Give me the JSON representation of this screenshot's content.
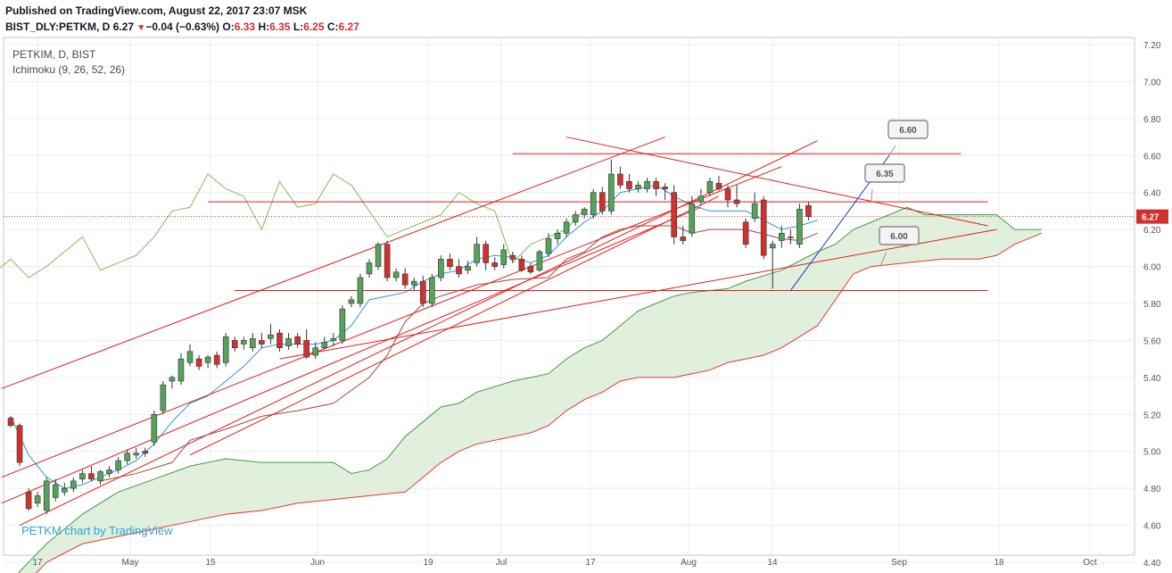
{
  "header": {
    "published": "Published on TradingView.com, August 22, 2017 23:07 MSK",
    "symbol": "BIST_DLY:PETKM, D",
    "last": "6.27",
    "change_arrow": "▼",
    "change": "−0.04 (−0.63%)",
    "o_label": "O:",
    "o": "6.33",
    "h_label": "H:",
    "h": "6.35",
    "l_label": "L:",
    "l": "6.25",
    "c_label": "C:",
    "c": "6.27"
  },
  "legend": {
    "line1": "PETKIM, D, BIST",
    "line2": "Ichimoku (9, 26, 52, 26)"
  },
  "watermark": "PETKM chart by TradingView",
  "colors": {
    "up": "#53a35a",
    "down": "#d0312d",
    "tenkan": "#2f96d8",
    "kijun": "#a54545",
    "span_a": "#3e9c3e",
    "span_b": "#e8372d",
    "chikou": "#7fbf55",
    "cloud": "#d8ecd5",
    "trend": "#e51a1a",
    "blue_line": "#1c34d6"
  },
  "chart_data": {
    "type": "candlestick",
    "y_range": [
      4.4,
      7.2
    ],
    "y_ticks": [
      "7.20",
      "7.00",
      "6.80",
      "6.60",
      "6.40",
      "6.20",
      "6.00",
      "5.80",
      "5.60",
      "5.40",
      "5.20",
      "5.00",
      "4.80",
      "4.60",
      "4.40"
    ],
    "x_ticks": [
      "17",
      "May",
      "15",
      "Jun",
      "19",
      "Jul",
      "17",
      "Aug",
      "14",
      "Sep",
      "18",
      "Oct"
    ],
    "last_price_label": "6.27",
    "last_price": 6.27,
    "candles": [
      [
        5.18,
        5.19,
        5.13,
        5.14
      ],
      [
        5.14,
        5.15,
        4.92,
        4.94
      ],
      [
        4.78,
        4.8,
        4.68,
        4.69
      ],
      [
        4.72,
        4.78,
        4.7,
        4.76
      ],
      [
        4.68,
        4.86,
        4.66,
        4.84
      ],
      [
        4.75,
        4.85,
        4.73,
        4.82
      ],
      [
        4.78,
        4.83,
        4.76,
        4.8
      ],
      [
        4.8,
        4.86,
        4.78,
        4.84
      ],
      [
        4.85,
        4.9,
        4.83,
        4.88
      ],
      [
        4.88,
        4.92,
        4.84,
        4.85
      ],
      [
        4.84,
        4.9,
        4.82,
        4.89
      ],
      [
        4.88,
        4.92,
        4.86,
        4.9
      ],
      [
        4.9,
        4.97,
        4.88,
        4.95
      ],
      [
        4.95,
        5.01,
        4.93,
        4.99
      ],
      [
        4.98,
        5.02,
        4.96,
        4.99
      ],
      [
        5.0,
        5.02,
        4.97,
        4.99
      ],
      [
        5.05,
        5.22,
        5.03,
        5.2
      ],
      [
        5.22,
        5.38,
        5.2,
        5.36
      ],
      [
        5.38,
        5.41,
        5.34,
        5.4
      ],
      [
        5.38,
        5.53,
        5.36,
        5.5
      ],
      [
        5.48,
        5.58,
        5.46,
        5.54
      ],
      [
        5.5,
        5.52,
        5.44,
        5.46
      ],
      [
        5.48,
        5.52,
        5.45,
        5.51
      ],
      [
        5.52,
        5.54,
        5.45,
        5.47
      ],
      [
        5.48,
        5.64,
        5.46,
        5.62
      ],
      [
        5.6,
        5.62,
        5.54,
        5.56
      ],
      [
        5.58,
        5.62,
        5.55,
        5.6
      ],
      [
        5.56,
        5.64,
        5.54,
        5.61
      ],
      [
        5.6,
        5.64,
        5.56,
        5.58
      ],
      [
        5.61,
        5.69,
        5.58,
        5.63
      ],
      [
        5.64,
        5.66,
        5.54,
        5.56
      ],
      [
        5.57,
        5.64,
        5.55,
        5.61
      ],
      [
        5.62,
        5.64,
        5.56,
        5.58
      ],
      [
        5.6,
        5.66,
        5.5,
        5.51
      ],
      [
        5.52,
        5.59,
        5.5,
        5.56
      ],
      [
        5.56,
        5.62,
        5.55,
        5.59
      ],
      [
        5.6,
        5.64,
        5.57,
        5.61
      ],
      [
        5.6,
        5.79,
        5.58,
        5.77
      ],
      [
        5.8,
        5.84,
        5.78,
        5.82
      ],
      [
        5.8,
        5.96,
        5.78,
        5.94
      ],
      [
        5.96,
        6.04,
        5.94,
        6.02
      ],
      [
        6.0,
        6.13,
        5.98,
        6.12
      ],
      [
        6.12,
        6.14,
        5.92,
        5.94
      ],
      [
        5.94,
        5.99,
        5.92,
        5.97
      ],
      [
        5.96,
        5.99,
        5.88,
        5.9
      ],
      [
        5.9,
        5.94,
        5.87,
        5.92
      ],
      [
        5.92,
        5.95,
        5.78,
        5.8
      ],
      [
        5.8,
        5.96,
        5.78,
        5.94
      ],
      [
        5.94,
        6.06,
        5.92,
        6.04
      ],
      [
        6.04,
        6.07,
        5.98,
        6.0
      ],
      [
        6.0,
        6.04,
        5.94,
        5.96
      ],
      [
        5.98,
        6.03,
        5.96,
        6.0
      ],
      [
        6.02,
        6.16,
        6.0,
        6.12
      ],
      [
        6.12,
        6.14,
        5.98,
        6.02
      ],
      [
        6.02,
        6.05,
        5.98,
        6.0
      ],
      [
        6.01,
        6.12,
        5.99,
        6.09
      ],
      [
        6.06,
        6.08,
        6.02,
        6.04
      ],
      [
        6.04,
        6.06,
        5.97,
        5.98
      ],
      [
        6.0,
        6.02,
        5.96,
        5.97
      ],
      [
        5.98,
        6.09,
        5.97,
        6.08
      ],
      [
        6.07,
        6.18,
        6.05,
        6.15
      ],
      [
        6.15,
        6.2,
        6.12,
        6.18
      ],
      [
        6.18,
        6.26,
        6.16,
        6.24
      ],
      [
        6.24,
        6.3,
        6.22,
        6.28
      ],
      [
        6.28,
        6.32,
        6.26,
        6.31
      ],
      [
        6.28,
        6.42,
        6.26,
        6.4
      ],
      [
        6.4,
        6.43,
        6.28,
        6.3
      ],
      [
        6.3,
        6.58,
        6.28,
        6.5
      ],
      [
        6.5,
        6.54,
        6.42,
        6.44
      ],
      [
        6.46,
        6.5,
        6.4,
        6.42
      ],
      [
        6.42,
        6.46,
        6.4,
        6.44
      ],
      [
        6.42,
        6.48,
        6.4,
        6.46
      ],
      [
        6.46,
        6.48,
        6.38,
        6.42
      ],
      [
        6.43,
        6.45,
        6.36,
        6.42
      ],
      [
        6.4,
        6.44,
        6.12,
        6.16
      ],
      [
        6.16,
        6.22,
        6.12,
        6.14
      ],
      [
        6.18,
        6.38,
        6.16,
        6.34
      ],
      [
        6.35,
        6.42,
        6.33,
        6.38
      ],
      [
        6.4,
        6.48,
        6.38,
        6.46
      ],
      [
        6.45,
        6.49,
        6.41,
        6.42
      ],
      [
        6.42,
        6.44,
        6.32,
        6.36
      ],
      [
        6.36,
        6.44,
        6.32,
        6.34
      ],
      [
        6.24,
        6.26,
        6.1,
        6.12
      ],
      [
        6.26,
        6.4,
        6.24,
        6.34
      ],
      [
        6.36,
        6.38,
        6.04,
        6.06
      ],
      [
        6.1,
        6.14,
        5.88,
        6.12
      ],
      [
        6.14,
        6.22,
        6.1,
        6.18
      ],
      [
        6.16,
        6.2,
        6.12,
        6.16
      ],
      [
        6.12,
        6.34,
        6.1,
        6.31
      ],
      [
        6.33,
        6.35,
        6.25,
        6.27
      ]
    ],
    "horizontal_lines": [
      6.61,
      6.35,
      5.87
    ],
    "callouts": [
      {
        "label": "6.60",
        "value": 6.6
      },
      {
        "label": "6.35",
        "value": 6.35
      },
      {
        "label": "6.00",
        "value": 6.0
      }
    ],
    "ichimoku": {
      "tenkan": [
        [
          0,
          5.19
        ],
        [
          2,
          4.98
        ],
        [
          4,
          4.86
        ],
        [
          6,
          4.8
        ],
        [
          8,
          4.82
        ],
        [
          10,
          4.86
        ],
        [
          12,
          4.9
        ],
        [
          14,
          4.95
        ],
        [
          16,
          5.04
        ],
        [
          18,
          5.16
        ],
        [
          20,
          5.26
        ],
        [
          22,
          5.3
        ],
        [
          24,
          5.38
        ],
        [
          26,
          5.46
        ],
        [
          28,
          5.56
        ],
        [
          30,
          5.58
        ],
        [
          32,
          5.58
        ],
        [
          34,
          5.58
        ],
        [
          36,
          5.6
        ],
        [
          38,
          5.68
        ],
        [
          40,
          5.82
        ],
        [
          42,
          5.84
        ],
        [
          44,
          5.86
        ],
        [
          46,
          5.92
        ],
        [
          48,
          5.96
        ],
        [
          50,
          5.98
        ],
        [
          52,
          6.04
        ],
        [
          54,
          6.06
        ],
        [
          56,
          6.05
        ],
        [
          58,
          6.02
        ],
        [
          60,
          6.06
        ],
        [
          62,
          6.16
        ],
        [
          64,
          6.24
        ],
        [
          66,
          6.3
        ],
        [
          68,
          6.4
        ],
        [
          70,
          6.42
        ],
        [
          72,
          6.44
        ],
        [
          74,
          6.38
        ],
        [
          76,
          6.33
        ],
        [
          78,
          6.3
        ],
        [
          80,
          6.3
        ],
        [
          82,
          6.3
        ],
        [
          84,
          6.25
        ],
        [
          86,
          6.2
        ],
        [
          88,
          6.22
        ],
        [
          90,
          6.25
        ]
      ],
      "kijun": [
        [
          10,
          4.84
        ],
        [
          14,
          4.88
        ],
        [
          18,
          4.94
        ],
        [
          20,
          5.06
        ],
        [
          24,
          5.12
        ],
        [
          28,
          5.19
        ],
        [
          32,
          5.22
        ],
        [
          36,
          5.26
        ],
        [
          40,
          5.4
        ],
        [
          42,
          5.52
        ],
        [
          44,
          5.7
        ],
        [
          46,
          5.8
        ],
        [
          48,
          5.84
        ],
        [
          52,
          5.9
        ],
        [
          56,
          5.93
        ],
        [
          60,
          5.94
        ],
        [
          62,
          6.04
        ],
        [
          64,
          6.08
        ],
        [
          66,
          6.16
        ],
        [
          68,
          6.2
        ],
        [
          70,
          6.22
        ],
        [
          74,
          6.22
        ],
        [
          76,
          6.18
        ],
        [
          78,
          6.2
        ],
        [
          80,
          6.2
        ],
        [
          82,
          6.2
        ],
        [
          86,
          6.15
        ],
        [
          88,
          6.14
        ],
        [
          90,
          6.18
        ]
      ],
      "span_a": [
        [
          0,
          4.3
        ],
        [
          4,
          4.5
        ],
        [
          8,
          4.66
        ],
        [
          12,
          4.78
        ],
        [
          16,
          4.85
        ],
        [
          20,
          4.92
        ],
        [
          24,
          4.96
        ],
        [
          28,
          4.94
        ],
        [
          32,
          4.94
        ],
        [
          36,
          4.94
        ],
        [
          38,
          4.88
        ],
        [
          40,
          4.9
        ],
        [
          42,
          4.96
        ],
        [
          44,
          5.08
        ],
        [
          46,
          5.16
        ],
        [
          48,
          5.24
        ],
        [
          50,
          5.26
        ],
        [
          52,
          5.32
        ],
        [
          56,
          5.38
        ],
        [
          58,
          5.4
        ],
        [
          60,
          5.42
        ],
        [
          62,
          5.5
        ],
        [
          64,
          5.56
        ],
        [
          66,
          5.6
        ],
        [
          68,
          5.68
        ],
        [
          70,
          5.76
        ],
        [
          72,
          5.8
        ],
        [
          74,
          5.84
        ],
        [
          76,
          5.86
        ],
        [
          80,
          5.88
        ],
        [
          82,
          5.92
        ],
        [
          86,
          5.98
        ],
        [
          90,
          6.08
        ],
        [
          92,
          6.12
        ],
        [
          94,
          6.2
        ],
        [
          96,
          6.24
        ],
        [
          98,
          6.28
        ],
        [
          100,
          6.32
        ],
        [
          102,
          6.28
        ],
        [
          106,
          6.28
        ],
        [
          110,
          6.28
        ],
        [
          112,
          6.2
        ],
        [
          115,
          6.2
        ]
      ],
      "span_b": [
        [
          0,
          4.2
        ],
        [
          4,
          4.4
        ],
        [
          8,
          4.5
        ],
        [
          12,
          4.54
        ],
        [
          16,
          4.58
        ],
        [
          20,
          4.62
        ],
        [
          24,
          4.66
        ],
        [
          28,
          4.68
        ],
        [
          32,
          4.72
        ],
        [
          36,
          4.74
        ],
        [
          40,
          4.76
        ],
        [
          44,
          4.78
        ],
        [
          46,
          4.86
        ],
        [
          48,
          4.94
        ],
        [
          50,
          5.0
        ],
        [
          52,
          5.04
        ],
        [
          56,
          5.08
        ],
        [
          58,
          5.1
        ],
        [
          60,
          5.14
        ],
        [
          62,
          5.22
        ],
        [
          64,
          5.28
        ],
        [
          66,
          5.32
        ],
        [
          68,
          5.38
        ],
        [
          70,
          5.4
        ],
        [
          74,
          5.4
        ],
        [
          76,
          5.42
        ],
        [
          78,
          5.44
        ],
        [
          80,
          5.48
        ],
        [
          82,
          5.5
        ],
        [
          84,
          5.52
        ],
        [
          86,
          5.56
        ],
        [
          88,
          5.62
        ],
        [
          90,
          5.68
        ],
        [
          92,
          5.82
        ],
        [
          94,
          5.96
        ],
        [
          96,
          6.0
        ],
        [
          100,
          6.02
        ],
        [
          104,
          6.04
        ],
        [
          106,
          6.04
        ],
        [
          108,
          6.04
        ],
        [
          110,
          6.06
        ],
        [
          112,
          6.12
        ],
        [
          115,
          6.18
        ]
      ],
      "chikou": [
        [
          -26,
          5.54
        ],
        [
          -24,
          5.6
        ],
        [
          -22,
          5.58
        ],
        [
          -20,
          5.6
        ],
        [
          -18,
          5.62
        ],
        [
          -16,
          5.52
        ],
        [
          -14,
          5.54
        ],
        [
          -12,
          5.82
        ],
        [
          -10,
          5.8
        ],
        [
          -8,
          6.18
        ],
        [
          -6,
          5.9
        ],
        [
          -4,
          5.86
        ],
        [
          -2,
          5.96
        ],
        [
          0,
          6.04
        ],
        [
          2,
          5.94
        ],
        [
          4,
          6.0
        ],
        [
          6,
          6.08
        ],
        [
          8,
          6.16
        ],
        [
          10,
          5.98
        ],
        [
          12,
          6.02
        ],
        [
          14,
          6.06
        ],
        [
          16,
          6.16
        ],
        [
          18,
          6.3
        ],
        [
          20,
          6.32
        ],
        [
          22,
          6.5
        ],
        [
          24,
          6.42
        ],
        [
          26,
          6.38
        ],
        [
          28,
          6.2
        ],
        [
          30,
          6.46
        ],
        [
          32,
          6.32
        ],
        [
          34,
          6.34
        ],
        [
          36,
          6.5
        ],
        [
          38,
          6.44
        ],
        [
          40,
          6.3
        ],
        [
          42,
          6.16
        ],
        [
          44,
          6.2
        ],
        [
          46,
          6.24
        ],
        [
          48,
          6.28
        ],
        [
          50,
          6.4
        ],
        [
          52,
          6.34
        ],
        [
          54,
          6.3
        ],
        [
          56,
          6.02
        ],
        [
          58,
          6.12
        ],
        [
          60,
          6.16
        ],
        [
          62,
          6.2
        ],
        [
          64,
          6.31
        ]
      ]
    }
  }
}
